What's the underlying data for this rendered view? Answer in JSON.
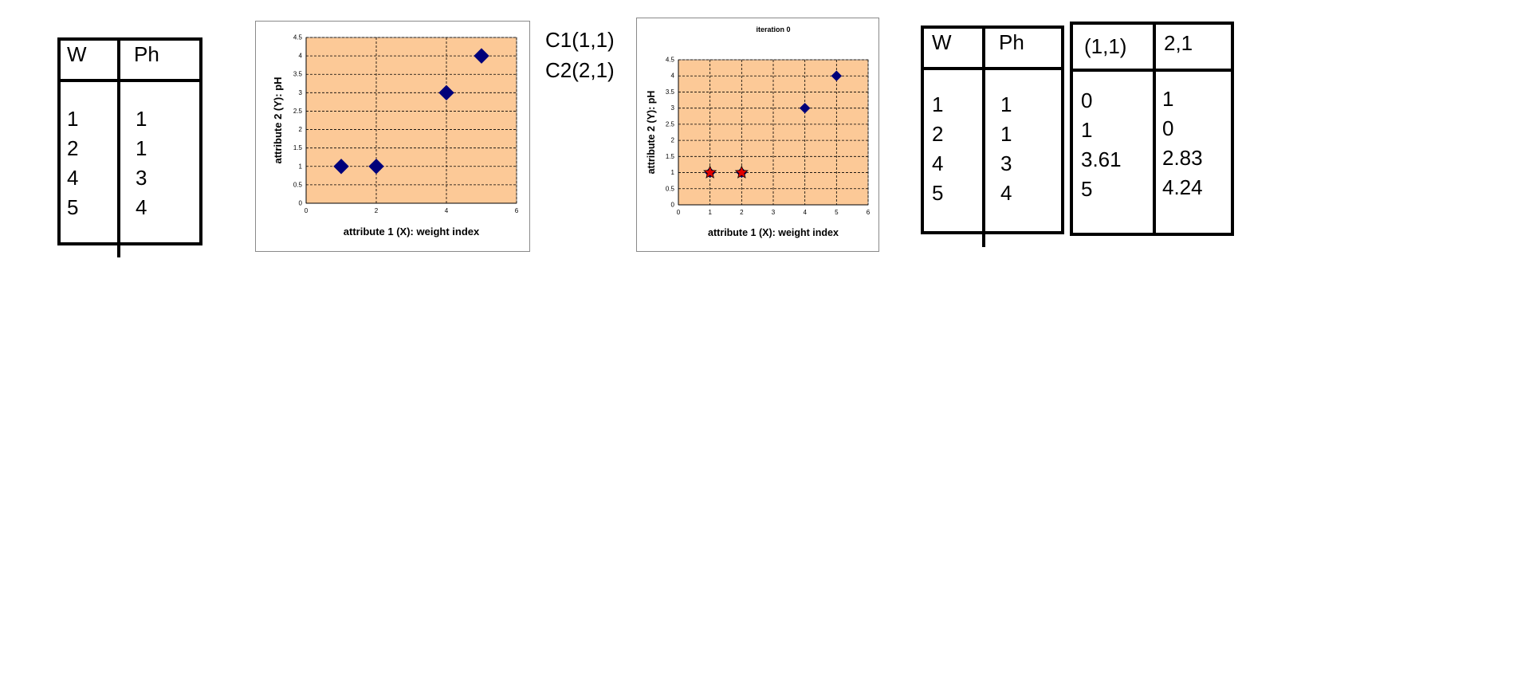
{
  "table1": {
    "headers": [
      "W",
      "Ph"
    ],
    "col_w": [
      "1",
      "2",
      "4",
      "5"
    ],
    "col_ph": [
      "1",
      "1",
      "3",
      "4"
    ]
  },
  "centroids": {
    "c1": "C1(1,1)",
    "c2": "C2(2,1)"
  },
  "table2": {
    "headers": [
      "W",
      "Ph"
    ],
    "col_w": [
      "1",
      "2",
      "4",
      "5"
    ],
    "col_ph": [
      "1",
      "1",
      "3",
      "4"
    ]
  },
  "table3": {
    "headers": [
      "(1,1)",
      "2,1"
    ],
    "col_d1": [
      "0",
      "1",
      "3.61",
      "5"
    ],
    "col_d2": [
      "1",
      "0",
      "2.83",
      "4.24"
    ]
  },
  "chart_data": [
    {
      "type": "scatter",
      "title": "",
      "xlabel": "attribute 1 (X): weight index",
      "ylabel": "attribute 2 (Y): pH",
      "xlim": [
        0,
        6
      ],
      "ylim": [
        0,
        4.5
      ],
      "xticks": [
        "0",
        "2",
        "4",
        "6"
      ],
      "yticks": [
        "0",
        "0.5",
        "1",
        "1.5",
        "2",
        "2.5",
        "3",
        "3.5",
        "4",
        "4.5"
      ],
      "grid": true,
      "plot_bg": "#fcc997",
      "series": [
        {
          "marker": "diamond",
          "color": "#00007a",
          "points": [
            [
              1,
              1
            ],
            [
              2,
              1
            ],
            [
              4,
              3
            ],
            [
              5,
              4
            ]
          ]
        }
      ]
    },
    {
      "type": "scatter",
      "title": "iteration 0",
      "xlabel": "attribute 1 (X): weight index",
      "ylabel": "attribute 2 (Y): pH",
      "xlim": [
        0,
        6
      ],
      "ylim": [
        0,
        4.5
      ],
      "xticks": [
        "0",
        "1",
        "2",
        "3",
        "4",
        "5",
        "6"
      ],
      "yticks": [
        "0",
        "0.5",
        "1",
        "1.5",
        "2",
        "2.5",
        "3",
        "3.5",
        "4",
        "4.5"
      ],
      "grid": true,
      "plot_bg": "#fcc997",
      "series": [
        {
          "marker": "diamond",
          "color": "#00007a",
          "points": [
            [
              1,
              1
            ],
            [
              2,
              1
            ],
            [
              4,
              3
            ],
            [
              5,
              4
            ]
          ]
        },
        {
          "marker": "star",
          "color": "#e00000",
          "points": [
            [
              1,
              1
            ],
            [
              2,
              1
            ]
          ]
        }
      ]
    }
  ]
}
